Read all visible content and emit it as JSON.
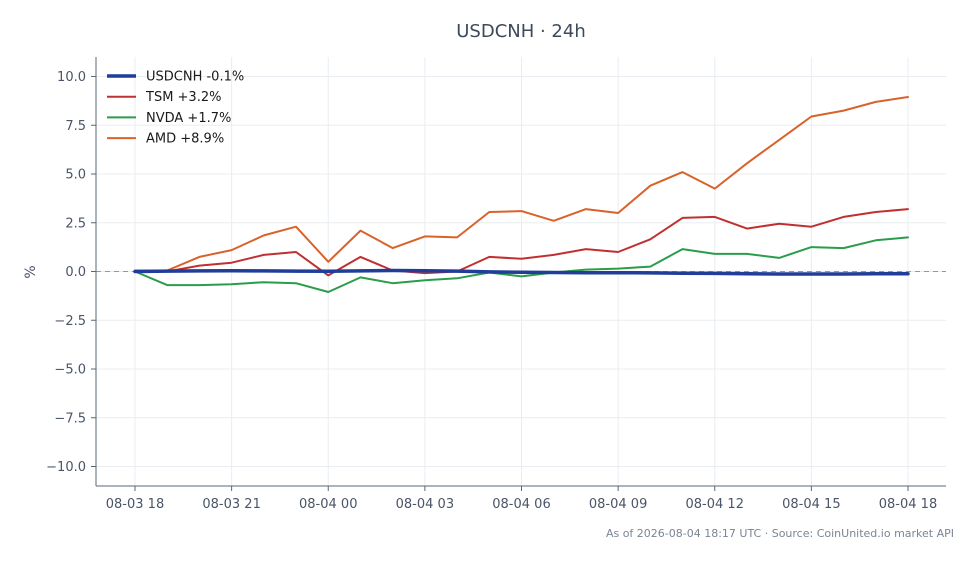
{
  "chart_data": {
    "type": "line",
    "title": "USDCNH · 24h",
    "xlabel": "",
    "ylabel": "%",
    "ylim": [
      -11,
      11
    ],
    "yticks": [
      -10.0,
      -7.5,
      -5.0,
      -2.5,
      0.0,
      2.5,
      5.0,
      7.5,
      10.0
    ],
    "ytick_labels": [
      "−10.0",
      "−7.5",
      "−5.0",
      "−2.5",
      "0.0",
      "2.5",
      "5.0",
      "7.5",
      "10.0"
    ],
    "x_hours": [
      "08-03 18:00",
      "08-03 19:00",
      "08-03 20:00",
      "08-03 21:00",
      "08-03 22:00",
      "08-03 23:00",
      "08-04 00:00",
      "08-04 01:00",
      "08-04 02:00",
      "08-04 03:00",
      "08-04 04:00",
      "08-04 05:00",
      "08-04 06:00",
      "08-04 07:00",
      "08-04 08:00",
      "08-04 09:00",
      "08-04 10:00",
      "08-04 11:00",
      "08-04 12:00",
      "08-04 13:00",
      "08-04 14:00",
      "08-04 15:00",
      "08-04 16:00",
      "08-04 17:00",
      "08-04 18:00"
    ],
    "xticks": [
      "08-03 18",
      "08-03 21",
      "08-04 00",
      "08-04 03",
      "08-04 06",
      "08-04 09",
      "08-04 12",
      "08-04 15",
      "08-04 18"
    ],
    "grid": true,
    "zero_line": true,
    "legend_position": "top-left",
    "series": [
      {
        "name": "USDCNH -0.1%",
        "color": "#1f3d99",
        "values": [
          0.0,
          0.02,
          0.03,
          0.04,
          0.03,
          0.02,
          0.01,
          0.03,
          0.05,
          0.04,
          0.02,
          -0.02,
          -0.04,
          -0.05,
          -0.06,
          -0.06,
          -0.07,
          -0.09,
          -0.1,
          -0.12,
          -0.13,
          -0.13,
          -0.13,
          -0.12,
          -0.12
        ]
      },
      {
        "name": "TSM +3.2%",
        "color": "#c03030",
        "values": [
          0.05,
          0.0,
          0.3,
          0.45,
          0.85,
          1.0,
          -0.2,
          0.75,
          0.05,
          -0.08,
          0.0,
          0.75,
          0.65,
          0.85,
          1.15,
          1.0,
          1.65,
          2.75,
          2.8,
          2.2,
          2.45,
          2.3,
          2.8,
          3.05,
          3.2
        ]
      },
      {
        "name": "NVDA +1.7%",
        "color": "#2a9d4b",
        "values": [
          0.0,
          -0.7,
          -0.7,
          -0.65,
          -0.55,
          -0.6,
          -1.05,
          -0.3,
          -0.6,
          -0.45,
          -0.35,
          -0.05,
          -0.25,
          -0.05,
          0.1,
          0.15,
          0.25,
          1.15,
          0.9,
          0.9,
          0.7,
          1.25,
          1.2,
          1.6,
          1.75
        ]
      },
      {
        "name": "AMD +8.9%",
        "color": "#d9622b",
        "values": [
          0.05,
          0.05,
          0.75,
          1.1,
          1.85,
          2.3,
          0.5,
          2.1,
          1.2,
          1.8,
          1.75,
          3.05,
          3.1,
          2.6,
          3.2,
          3.0,
          4.4,
          5.1,
          4.25,
          5.55,
          6.75,
          7.95,
          8.25,
          8.7,
          8.95
        ]
      }
    ]
  },
  "footer": {
    "text": "As of 2026-08-04 18:17 UTC · Source: CoinUnited.io market API"
  }
}
